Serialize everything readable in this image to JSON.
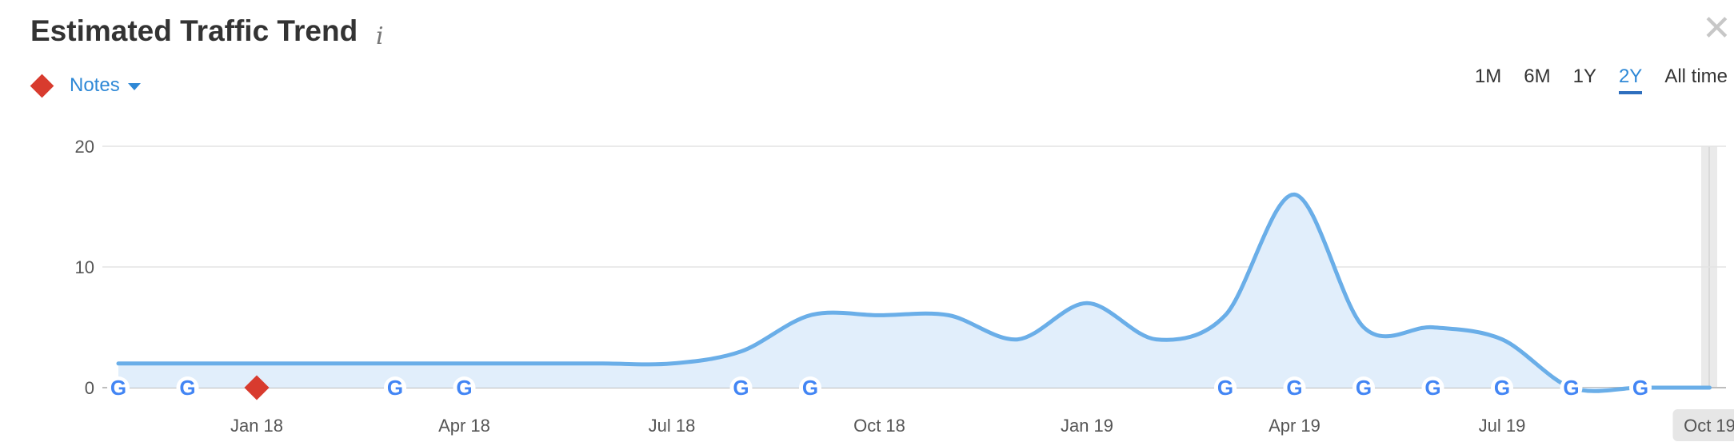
{
  "header": {
    "title": "Estimated Traffic Trend",
    "info_icon": "info-icon",
    "close_icon": "close-icon"
  },
  "notes": {
    "label": "Notes",
    "icon": "diamond-icon",
    "color": "#d83b2e"
  },
  "periods": [
    {
      "label": "1M",
      "active": false
    },
    {
      "label": "6M",
      "active": false
    },
    {
      "label": "1Y",
      "active": false
    },
    {
      "label": "2Y",
      "active": true
    },
    {
      "label": "All time",
      "active": false
    }
  ],
  "colors": {
    "line": "#6aaee8",
    "fill": "#e1eefb",
    "accent": "#2e88d6",
    "note": "#d83b2e"
  },
  "chart_data": {
    "type": "area",
    "ylim": [
      0,
      20
    ],
    "yticks": [
      0,
      10,
      20
    ],
    "x_ticks": [
      {
        "label": "Jan 18",
        "date": "2018-01"
      },
      {
        "label": "Apr 18",
        "date": "2018-04"
      },
      {
        "label": "Jul 18",
        "date": "2018-07"
      },
      {
        "label": "Oct 18",
        "date": "2018-10"
      },
      {
        "label": "Jan 19",
        "date": "2019-01"
      },
      {
        "label": "Apr 19",
        "date": "2019-04"
      },
      {
        "label": "Jul 19",
        "date": "2019-07"
      },
      {
        "label": "Oct 19",
        "date": "2019-10"
      }
    ],
    "series": [
      {
        "points": [
          {
            "date": "2017-11",
            "value": 2
          },
          {
            "date": "2017-12",
            "value": 2
          },
          {
            "date": "2018-01",
            "value": 2
          },
          {
            "date": "2018-02",
            "value": 2
          },
          {
            "date": "2018-03",
            "value": 2
          },
          {
            "date": "2018-04",
            "value": 2
          },
          {
            "date": "2018-05",
            "value": 2
          },
          {
            "date": "2018-06",
            "value": 2
          },
          {
            "date": "2018-07",
            "value": 2
          },
          {
            "date": "2018-08",
            "value": 3
          },
          {
            "date": "2018-09",
            "value": 6
          },
          {
            "date": "2018-10",
            "value": 6
          },
          {
            "date": "2018-11",
            "value": 6
          },
          {
            "date": "2018-12",
            "value": 4
          },
          {
            "date": "2019-01",
            "value": 7
          },
          {
            "date": "2019-02",
            "value": 4
          },
          {
            "date": "2019-03",
            "value": 6
          },
          {
            "date": "2019-04",
            "value": 16
          },
          {
            "date": "2019-05",
            "value": 5
          },
          {
            "date": "2019-06",
            "value": 5
          },
          {
            "date": "2019-07",
            "value": 4
          },
          {
            "date": "2019-08",
            "value": 0
          },
          {
            "date": "2019-09",
            "value": 0
          },
          {
            "date": "2019-10",
            "value": 0
          }
        ]
      }
    ],
    "google_updates": [
      "2017-11",
      "2017-12",
      "2018-03",
      "2018-04",
      "2018-08",
      "2018-09",
      "2019-03",
      "2019-04",
      "2019-05",
      "2019-06",
      "2019-07",
      "2019-08",
      "2019-09"
    ],
    "notes": [
      "2018-01"
    ],
    "highlighted_x": "Oct 19",
    "grid": true
  }
}
